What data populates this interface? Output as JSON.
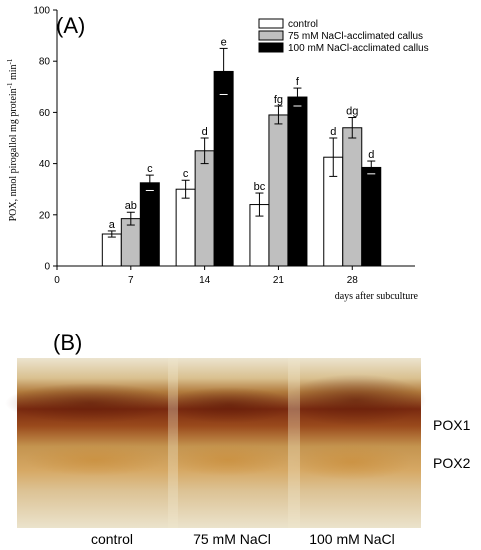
{
  "panel_a_label": "(A)",
  "panel_b_label": "(B)",
  "chart_data": {
    "type": "bar",
    "title": "",
    "xlabel": "days after subculture",
    "ylabel_main": "POX, nmol pirogallol mg protein",
    "ylabel_sup1": "-1",
    "ylabel_mid": " min",
    "ylabel_sup2": "-1",
    "categories": [
      "7",
      "14",
      "21",
      "28"
    ],
    "x_ticks": [
      "0",
      "7",
      "14",
      "21",
      "28"
    ],
    "y_ticks": [
      "0",
      "20",
      "40",
      "60",
      "80",
      "100"
    ],
    "ylim": [
      0,
      100
    ],
    "legend_position": "top-right",
    "series": [
      {
        "name": "control",
        "color": "#ffffff",
        "values": [
          12.5,
          30,
          24,
          42.5
        ],
        "errors": [
          1.2,
          3.5,
          4.5,
          7.5
        ],
        "labels": [
          "a",
          "c",
          "bc",
          "d"
        ]
      },
      {
        "name": "75 mM NaCl-acclimated callus",
        "color": "#bfbfbf",
        "values": [
          18.5,
          45,
          59,
          54
        ],
        "errors": [
          2.5,
          5,
          3.5,
          4
        ],
        "labels": [
          "ab",
          "d",
          "fg",
          "dg"
        ]
      },
      {
        "name": "100 mM NaCl-acclimated callus",
        "color": "#000000",
        "values": [
          32.5,
          76,
          66,
          38.5
        ],
        "errors": [
          3,
          9,
          3.5,
          2.5
        ],
        "labels": [
          "c",
          "e",
          "f",
          "d"
        ]
      }
    ]
  },
  "gel": {
    "lanes": [
      "control",
      "75 mM NaCl",
      "100 mM NaCl"
    ],
    "bands": [
      "POX1",
      "POX2"
    ]
  }
}
